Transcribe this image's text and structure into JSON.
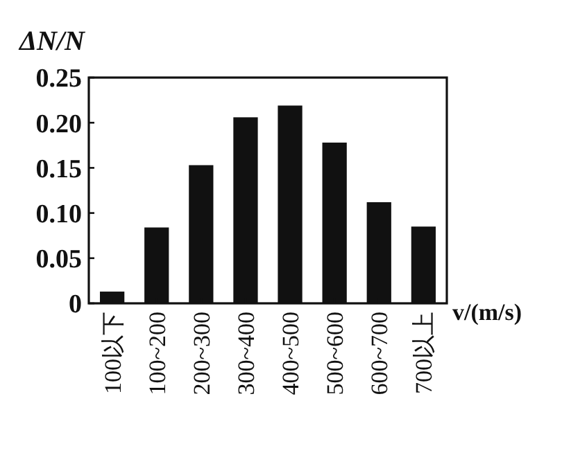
{
  "chart_data": {
    "type": "bar",
    "ylabel": "ΔN/N",
    "xlabel": "v/(m/s)",
    "categories": [
      "100以下",
      "100~200",
      "200~300",
      "300~400",
      "400~500",
      "500~600",
      "600~700",
      "700以上"
    ],
    "values": [
      0.013,
      0.084,
      0.153,
      0.206,
      0.219,
      0.178,
      0.112,
      0.085
    ],
    "color": "#111111",
    "ylim": [
      0,
      0.25
    ],
    "yticks": [
      {
        "value": 0,
        "label": "0"
      },
      {
        "value": 0.05,
        "label": "0.05"
      },
      {
        "value": 0.1,
        "label": "0.10"
      },
      {
        "value": 0.15,
        "label": "0.15"
      },
      {
        "value": 0.2,
        "label": "0.20"
      },
      {
        "value": 0.25,
        "label": "0.25"
      }
    ],
    "grid": false
  }
}
